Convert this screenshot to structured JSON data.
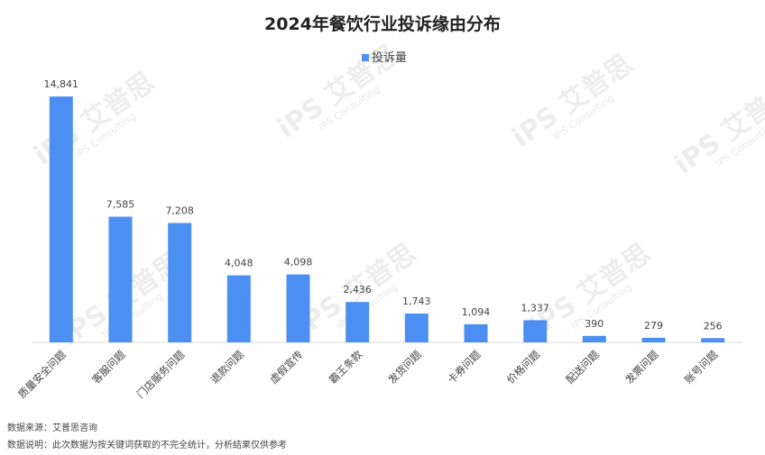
{
  "chart_data": {
    "type": "bar",
    "title": "2024年餐饮行业投诉缘由分布",
    "legend": {
      "entries": [
        "投诉量"
      ],
      "position": "top"
    },
    "categories": [
      "质量安全问题",
      "客服问题",
      "门店服务问题",
      "退款问题",
      "虚假宣传",
      "霸王条款",
      "发货问题",
      "卡券问题",
      "价格问题",
      "配送问题",
      "发票问题",
      "账号问题"
    ],
    "series": [
      {
        "name": "投诉量",
        "values": [
          14841,
          7585,
          7208,
          4048,
          4098,
          2436,
          1743,
          1094,
          1337,
          390,
          279,
          256
        ],
        "labels": [
          "14,841",
          "7,585",
          "7,208",
          "4,048",
          "4,098",
          "2,436",
          "1,743",
          "1,094",
          "1,337",
          "390",
          "279",
          "256"
        ]
      }
    ],
    "ylim": [
      0,
      15500
    ],
    "grid": false,
    "colors": {
      "bar": "#4c8ff2",
      "axis": "#d9d9d9"
    }
  },
  "footer": {
    "source": "数据来源：艾普思咨询",
    "note": "数据说明：此次数据为按关键词获取的不完全统计，分析结果仅供参考"
  },
  "watermark": {
    "brand": "iPS 艾普思",
    "sub": "IPS Consulting"
  }
}
